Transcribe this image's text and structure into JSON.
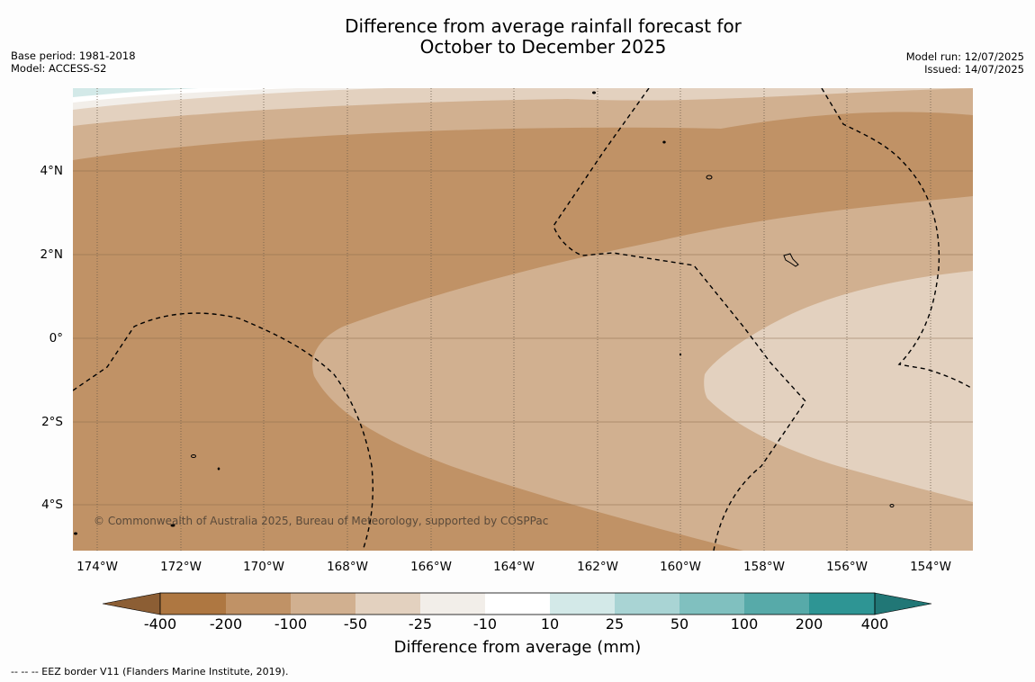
{
  "title": {
    "line1": "Difference from average rainfall forecast for",
    "line2": "October to December 2025"
  },
  "meta": {
    "base_period": "Base period: 1981-2018",
    "model": "Model: ACCESS-S2",
    "model_run": "Model run: 12/07/2025",
    "issued": "Issued: 14/07/2025"
  },
  "map": {
    "lat_labels": [
      "4°N",
      "2°N",
      "0°",
      "2°S",
      "4°S"
    ],
    "lon_labels": [
      "174°W",
      "172°W",
      "170°W",
      "168°W",
      "166°W",
      "164°W",
      "162°W",
      "160°W",
      "158°W",
      "156°W",
      "154°W"
    ],
    "copyright": "© Commonwealth of Australia 2025, Bureau of Meteorology, supported by COSPPac",
    "colors": {
      "lt_minus_200": "#ae7741",
      "minus_200_to_100": "#c09266",
      "minus_100_to_50": "#d1b090",
      "minus_50_to_25": "#e3d1bf",
      "minus_25_to_10": "#f2eee9",
      "minus_10_to_10": "#ffffff",
      "plus_10_to_25": "#d3e9e8",
      "plus_25_to_50": "#a9d4d4",
      "plus_50_to_100": "#80c0bf",
      "plus_100_to_200": "#57aaa9",
      "gt_200": "#2e9594"
    }
  },
  "colorbar": {
    "ticks": [
      "-400",
      "-200",
      "-100",
      "-50",
      "-25",
      "-10",
      "10",
      "25",
      "50",
      "100",
      "200",
      "400"
    ],
    "label": "Difference from average (mm)"
  },
  "legend_note": "--  --  -- EEZ border V11 (Flanders Marine Institute, 2019)."
}
